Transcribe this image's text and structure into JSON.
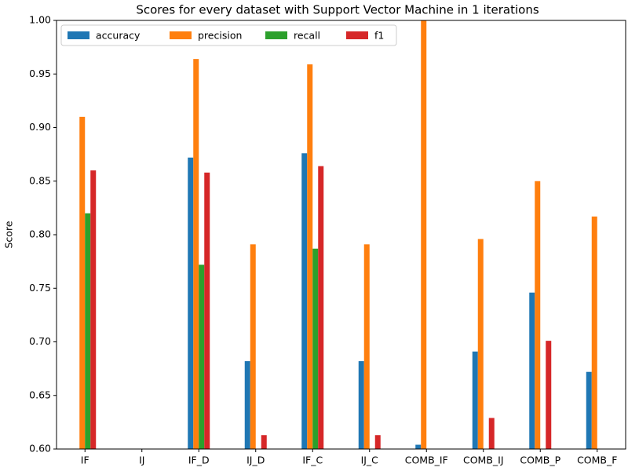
{
  "chart_data": {
    "type": "bar",
    "title": "Scores for every dataset with Support Vector Machine in 1 iterations",
    "y_label": "Score",
    "categories": [
      "IF",
      "IJ",
      "IF_D",
      "IJ_D",
      "IF_C",
      "IJ_C",
      "COMB_IF",
      "COMB_IJ",
      "COMB_P",
      "COMB_F"
    ],
    "series": [
      {
        "name": "accuracy",
        "color": "#1f77b4",
        "values": [
          null,
          null,
          0.872,
          0.682,
          0.876,
          0.682,
          0.604,
          0.691,
          0.746,
          0.672
        ]
      },
      {
        "name": "precision",
        "color": "#ff7f0e",
        "values": [
          0.91,
          null,
          0.964,
          0.791,
          0.959,
          0.791,
          1.0,
          0.796,
          0.85,
          0.817
        ]
      },
      {
        "name": "recall",
        "color": "#2ca02c",
        "values": [
          0.82,
          null,
          0.772,
          null,
          0.787,
          null,
          null,
          null,
          null,
          null
        ]
      },
      {
        "name": "f1",
        "color": "#d62728",
        "values": [
          0.86,
          null,
          0.858,
          0.613,
          0.864,
          0.613,
          null,
          0.629,
          0.701,
          null
        ]
      }
    ],
    "ylim": [
      0.6,
      1.0
    ],
    "yticks": [
      {
        "value": 0.6,
        "label": "0.60"
      },
      {
        "value": 0.65,
        "label": "0.65"
      },
      {
        "value": 0.7,
        "label": "0.70"
      },
      {
        "value": 0.75,
        "label": "0.75"
      },
      {
        "value": 0.8,
        "label": "0.80"
      },
      {
        "value": 0.85,
        "label": "0.85"
      },
      {
        "value": 0.9,
        "label": "0.90"
      },
      {
        "value": 0.95,
        "label": "0.95"
      },
      {
        "value": 1.0,
        "label": "1.00"
      }
    ],
    "legend": "upper left"
  }
}
